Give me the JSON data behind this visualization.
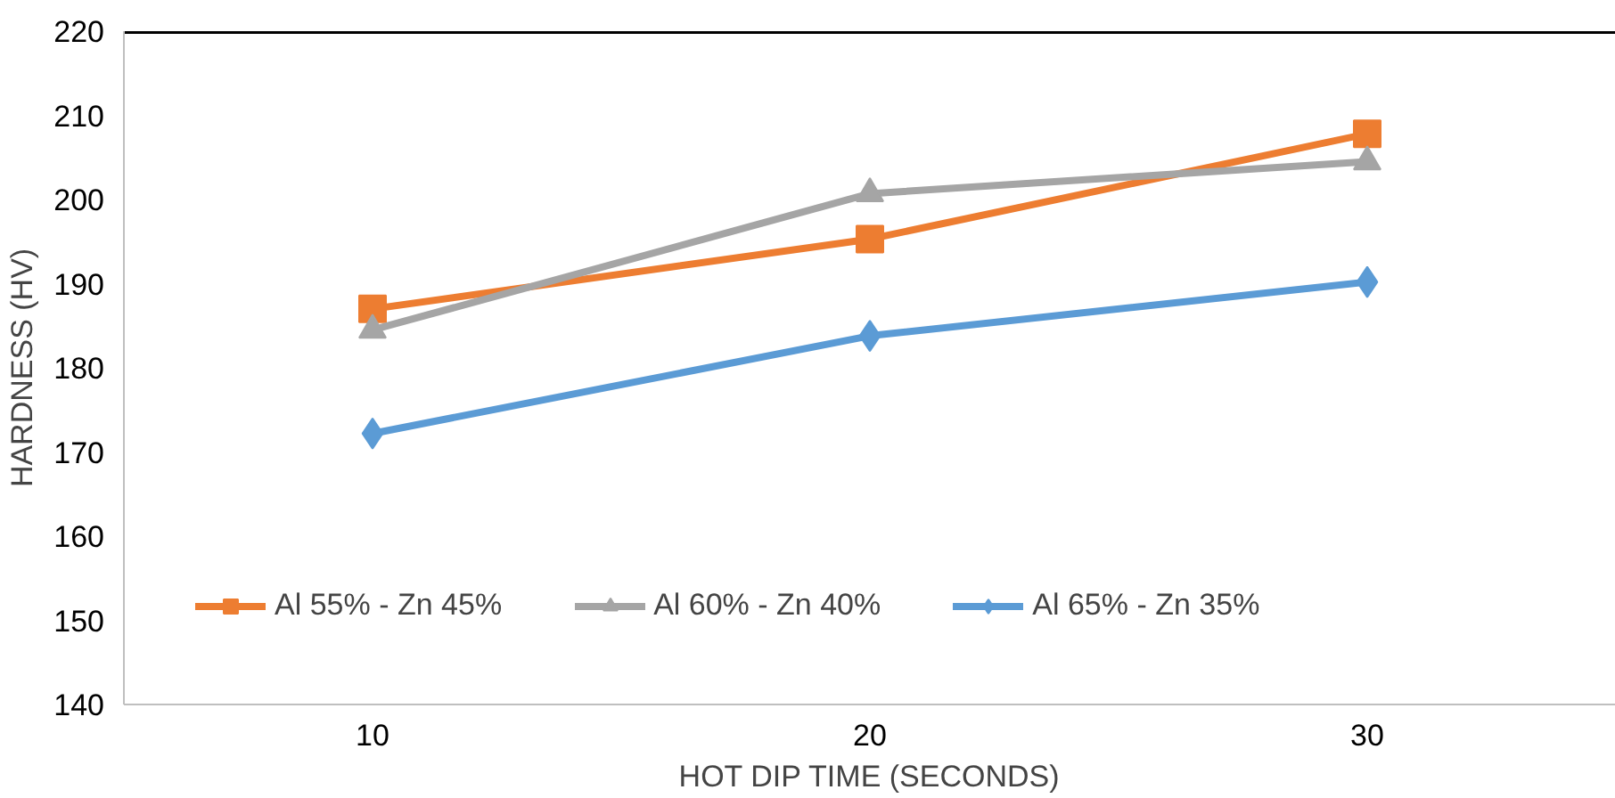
{
  "chart_data": {
    "type": "line",
    "xlabel": "HOT DIP TIME (SECONDS)",
    "ylabel": "HARDNESS (HV)",
    "categories": [
      "10",
      "20",
      "30"
    ],
    "series": [
      {
        "name": "Al 55% - Zn 45%",
        "color": "#ed7d31",
        "marker": "square",
        "values": [
          187,
          195.3,
          207.8
        ]
      },
      {
        "name": "Al 60% - Zn 40%",
        "color": "#a5a5a5",
        "marker": "triangle",
        "values": [
          184.5,
          200.7,
          204.5
        ]
      },
      {
        "name": "Al 65% - Zn 35%",
        "color": "#5b9bd5",
        "marker": "diamond",
        "values": [
          172.2,
          183.8,
          190.2
        ]
      }
    ],
    "ylim": [
      140,
      220
    ],
    "yticks": [
      140,
      150,
      160,
      170,
      180,
      190,
      200,
      210,
      220
    ],
    "grid": false,
    "legend": "bottom",
    "line_style": "solid"
  }
}
